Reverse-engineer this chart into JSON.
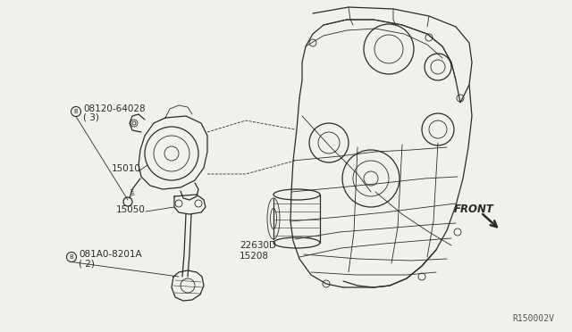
{
  "background_color": "#f0f0ec",
  "line_color": "#2a2a2a",
  "fig_width": 6.4,
  "fig_height": 3.72,
  "dpi": 100,
  "watermark": "R150002V",
  "labels": {
    "bolt1_num": "08120-64028",
    "bolt1_qty": "( 3)",
    "part15010": "15010",
    "part15050": "15050",
    "bolt2_num": "081A0-8201A",
    "bolt2_qty": "( 2)",
    "part22630": "22630D",
    "part15208": "15208",
    "front": "FRONT"
  }
}
